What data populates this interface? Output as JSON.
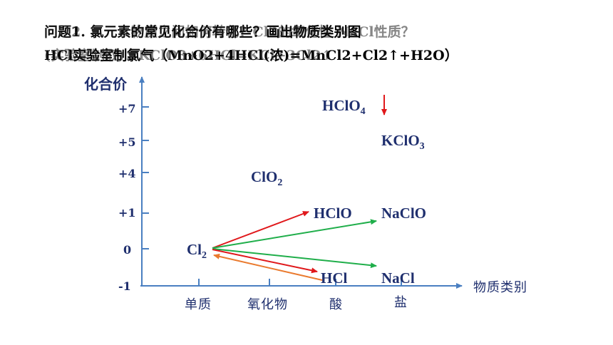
{
  "question": {
    "line1_main": "问题1. 氯元素的常见化合价有哪些？画出物质类别图",
    "line1_overlay": "问题2. 氯元素物质之间如何转化？Cl2的氧化性 NaCl性质？",
    "line2_main": "HCl实验室制氯气（MnO2+4HCl(浓)=MnCl2+Cl2↑+H2O）",
    "line2_overlay": "(实验室制取)：KClO3+6HCl=KCl+3Cl2↑"
  },
  "axes": {
    "y_label": "化合价",
    "x_label": "物质类别",
    "y_ticks": [
      "+7",
      "+5",
      "+4",
      "+1",
      "0",
      "-1"
    ],
    "x_categories": [
      "单质",
      "氧化物",
      "酸",
      "盐"
    ]
  },
  "species": {
    "hclo4": {
      "main": "HClO",
      "sub": "4"
    },
    "kclo3": {
      "main": "KClO",
      "sub": "3"
    },
    "clo2": {
      "main": "ClO",
      "sub": "2"
    },
    "hclo": {
      "main": "HClO",
      "sub": ""
    },
    "naclo": {
      "main": "NaClO",
      "sub": ""
    },
    "cl2": {
      "main": "Cl",
      "sub": "2"
    },
    "hcl": {
      "main": "HCl",
      "sub": ""
    },
    "nacl": {
      "main": "NaCl",
      "sub": ""
    }
  },
  "colors": {
    "axis": "#4a7fc1",
    "text": "#1f2f6e",
    "red_arrow": "#e0181b",
    "green_arrow": "#1fae4a",
    "orange_arrow": "#ea7a2e"
  }
}
